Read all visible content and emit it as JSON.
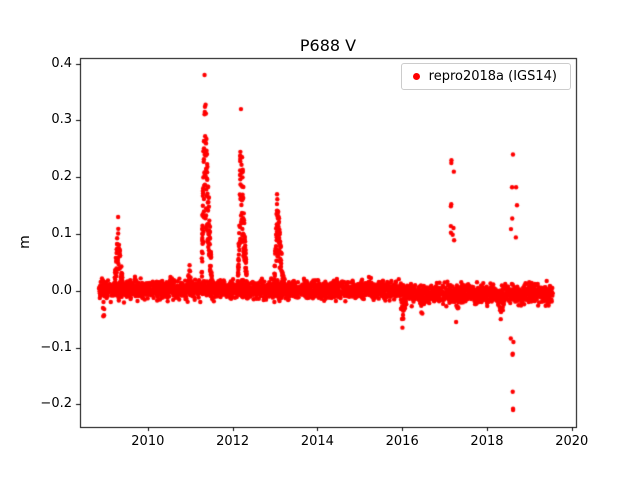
{
  "figure": {
    "background": "#ffffff"
  },
  "chart_data": {
    "type": "scatter",
    "title": "P688 V",
    "xlabel": "",
    "ylabel": "m",
    "legend": {
      "label": "repro2018a (IGS14)",
      "marker_color": "#ff0000",
      "position": "upper right"
    },
    "xlim": [
      2008.4,
      2020.1
    ],
    "ylim": [
      -0.24,
      0.41
    ],
    "grid": false,
    "xticks": [
      {
        "v": 2010,
        "label": "2010"
      },
      {
        "v": 2012,
        "label": "2012"
      },
      {
        "v": 2014,
        "label": "2014"
      },
      {
        "v": 2016,
        "label": "2016"
      },
      {
        "v": 2018,
        "label": "2018"
      },
      {
        "v": 2020,
        "label": "2020"
      }
    ],
    "yticks": [
      {
        "v": -0.2,
        "label": "−0.2"
      },
      {
        "v": -0.1,
        "label": "−0.1"
      },
      {
        "v": 0.0,
        "label": "0.0"
      },
      {
        "v": 0.1,
        "label": "0.1"
      },
      {
        "v": 0.2,
        "label": "0.2"
      },
      {
        "v": 0.3,
        "label": "0.3"
      },
      {
        "v": 0.4,
        "label": "0.4"
      }
    ],
    "marker": {
      "color": "#ff0000",
      "radius": 2.2
    },
    "baseline": {
      "step": 0.004,
      "sigma": 0.008,
      "segments": [
        {
          "start": 2008.85,
          "end": 2016.0,
          "offset": 0.002
        },
        {
          "start": 2016.0,
          "end": 2019.55,
          "offset": -0.006
        }
      ]
    },
    "events": [
      {
        "t0": 2008.93,
        "t1": 2008.99,
        "peak": -0.045,
        "n": 5,
        "sparse": true
      },
      {
        "t0": 2009.2,
        "t1": 2009.42,
        "peak": 0.13,
        "n": 70,
        "rise": 0.45
      },
      {
        "t0": 2010.92,
        "t1": 2011.05,
        "peak": 0.045,
        "n": 18,
        "rise": 0.5
      },
      {
        "t0": 2011.26,
        "t1": 2011.52,
        "peak": 0.38,
        "n": 140,
        "rise": 0.3
      },
      {
        "t0": 2012.12,
        "t1": 2012.34,
        "peak": 0.32,
        "n": 110,
        "rise": 0.35
      },
      {
        "t0": 2012.97,
        "t1": 2013.23,
        "peak": 0.17,
        "n": 90,
        "rise": 0.3
      },
      {
        "t0": 2015.93,
        "t1": 2016.12,
        "peak": -0.065,
        "n": 35,
        "rise": 0.4
      },
      {
        "t0": 2016.35,
        "t1": 2016.6,
        "peak": -0.04,
        "n": 20,
        "rise": 0.5
      },
      {
        "t0": 2017.12,
        "t1": 2017.24,
        "peak": 0.23,
        "n": 9,
        "sparse": true
      },
      {
        "t0": 2017.2,
        "t1": 2017.38,
        "peak": -0.055,
        "n": 16,
        "rise": 0.4
      },
      {
        "t0": 2018.2,
        "t1": 2018.45,
        "peak": -0.05,
        "n": 14,
        "rise": 0.5
      },
      {
        "t0": 2018.55,
        "t1": 2018.73,
        "peak": 0.24,
        "n": 6,
        "sparse": true
      },
      {
        "t0": 2018.56,
        "t1": 2018.72,
        "peak": -0.21,
        "n": 6,
        "sparse": true
      }
    ]
  }
}
